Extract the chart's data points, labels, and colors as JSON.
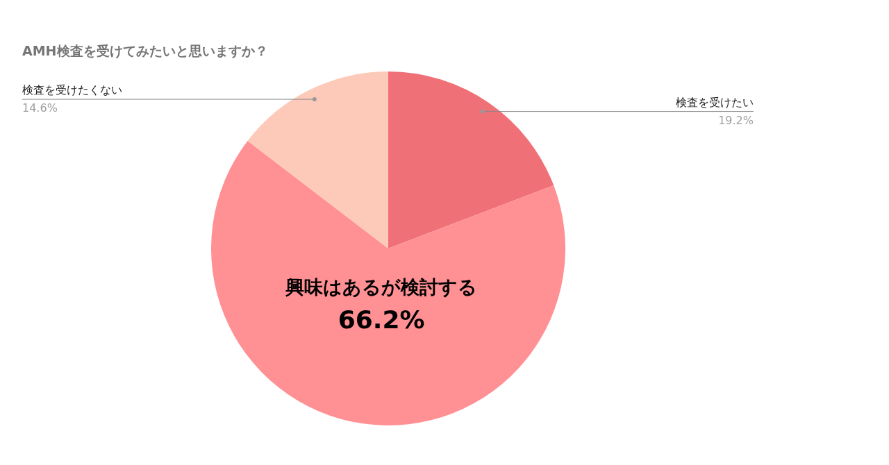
{
  "chart_data": {
    "type": "pie",
    "title": "AMH検査を受けてみたいと思いますか？",
    "categories": [
      "検査を受けたい",
      "興味はあるが検討する",
      "検査を受けたくない"
    ],
    "values": [
      19.2,
      66.2,
      14.6
    ],
    "value_labels": [
      "19.2%",
      "66.2%",
      "14.6%"
    ],
    "colors": [
      "#f07077",
      "#ff9094",
      "#fdcab9"
    ],
    "legend": false
  }
}
